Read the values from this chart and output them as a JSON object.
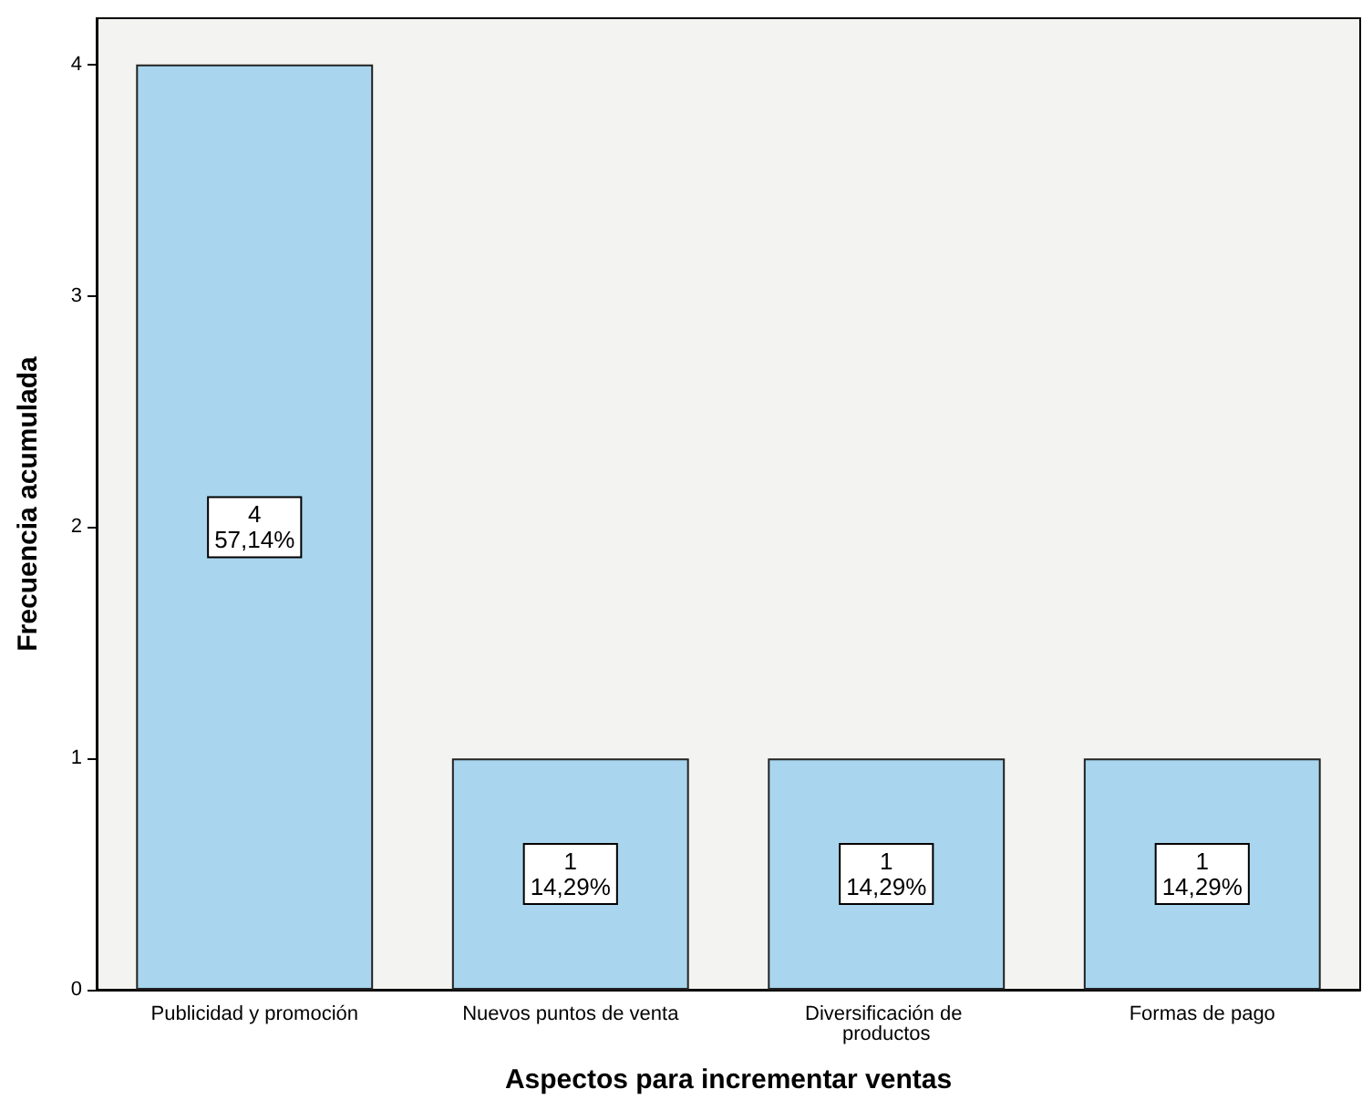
{
  "chart_data": {
    "type": "bar",
    "xlabel": "Aspectos para incrementar ventas",
    "ylabel": "Frecuencia acumulada",
    "categories": [
      "Publicidad y promoción",
      "Nuevos puntos de venta",
      "Diversificación de productos",
      "Formas de pago"
    ],
    "values": [
      4,
      1,
      1,
      1
    ],
    "value_labels": [
      "4\n57,14%",
      "1\n14,29%",
      "1\n14,29%",
      "1\n14,29%"
    ],
    "color": "#a9d5ee",
    "ylim": [
      0,
      4.2
    ],
    "yticks": [
      0,
      1,
      2,
      3,
      4
    ],
    "grid": false
  }
}
